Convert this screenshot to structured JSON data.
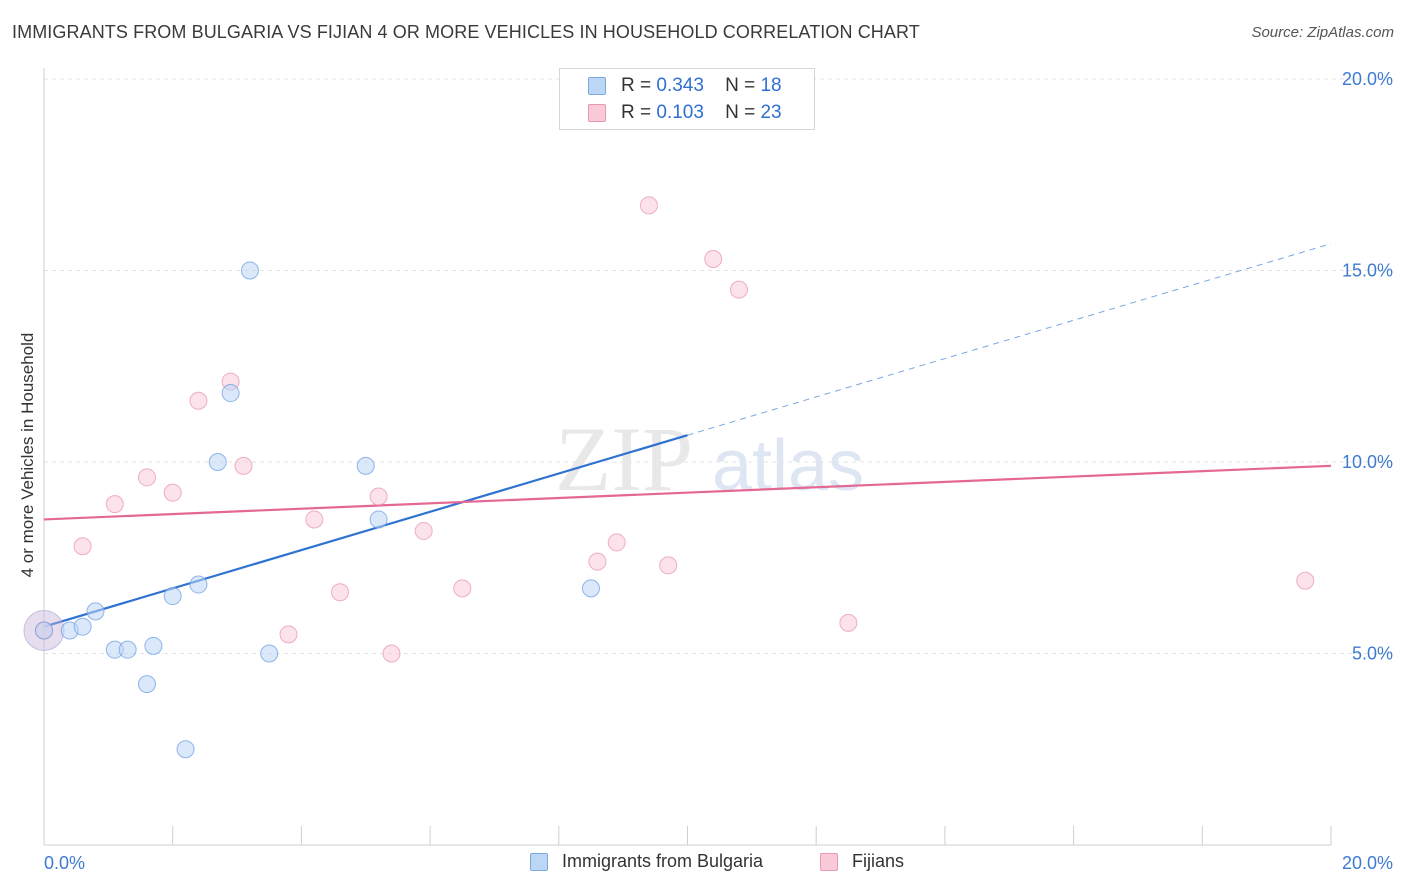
{
  "title": "IMMIGRANTS FROM BULGARIA VS FIJIAN 4 OR MORE VEHICLES IN HOUSEHOLD CORRELATION CHART",
  "source": "Source: ZipAtlas.com",
  "watermark": {
    "zip": "ZIP",
    "atlas": "atlas"
  },
  "legend_top": [
    {
      "r_label": "R =",
      "r_value": "0.343",
      "n_label": "N =",
      "n_value": "18",
      "color": "#bcd6f6"
    },
    {
      "r_label": "R =",
      "r_value": "0.103",
      "n_label": "N =",
      "n_value": "23",
      "color": "#f9cbd9"
    }
  ],
  "chart_data": {
    "type": "scatter",
    "title": "IMMIGRANTS FROM BULGARIA VS FIJIAN 4 OR MORE VEHICLES IN HOUSEHOLD CORRELATION CHART",
    "xlabel": "",
    "ylabel": "4 or more Vehicles in Household",
    "xlim": [
      0,
      20
    ],
    "ylim": [
      0,
      20
    ],
    "x_tick_labels": [
      "0.0%",
      "20.0%"
    ],
    "y_tick_labels": [
      "5.0%",
      "10.0%",
      "15.0%",
      "20.0%"
    ],
    "y_ticks": [
      5,
      10,
      15,
      20
    ],
    "grid": true,
    "legend_position": "bottom",
    "series": [
      {
        "name": "Immigrants from Bulgaria",
        "color": "#4a86d8",
        "fill": "#bcd6f6",
        "points": [
          [
            0.0,
            5.6
          ],
          [
            0.4,
            5.6
          ],
          [
            0.6,
            5.7
          ],
          [
            0.8,
            6.1
          ],
          [
            1.1,
            5.1
          ],
          [
            1.3,
            5.1
          ],
          [
            1.6,
            4.2
          ],
          [
            1.7,
            5.2
          ],
          [
            2.0,
            6.5
          ],
          [
            2.2,
            2.5
          ],
          [
            2.4,
            6.8
          ],
          [
            2.7,
            10.0
          ],
          [
            2.9,
            11.8
          ],
          [
            3.2,
            15.0
          ],
          [
            3.5,
            5.0
          ],
          [
            5.0,
            9.9
          ],
          [
            5.2,
            8.5
          ],
          [
            8.5,
            6.7
          ]
        ],
        "trend": {
          "x": [
            0.0,
            20.0
          ],
          "y": [
            5.7,
            15.7
          ],
          "solid_until_x": 10.0
        }
      },
      {
        "name": "Fijians",
        "color": "#e06a93",
        "fill": "#f9cbd9",
        "points": [
          [
            0.0,
            5.6
          ],
          [
            0.6,
            7.8
          ],
          [
            1.1,
            8.9
          ],
          [
            1.6,
            9.6
          ],
          [
            2.0,
            9.2
          ],
          [
            2.4,
            11.6
          ],
          [
            2.9,
            12.1
          ],
          [
            3.1,
            9.9
          ],
          [
            3.8,
            5.5
          ],
          [
            4.2,
            8.5
          ],
          [
            4.6,
            6.6
          ],
          [
            5.2,
            9.1
          ],
          [
            5.4,
            5.0
          ],
          [
            5.9,
            8.2
          ],
          [
            6.5,
            6.7
          ],
          [
            8.6,
            7.4
          ],
          [
            8.9,
            7.9
          ],
          [
            9.4,
            16.7
          ],
          [
            9.7,
            7.3
          ],
          [
            10.4,
            15.3
          ],
          [
            10.8,
            14.5
          ],
          [
            12.5,
            5.8
          ],
          [
            19.6,
            6.9
          ]
        ],
        "trend": {
          "x": [
            0.0,
            20.0
          ],
          "y": [
            8.5,
            9.9
          ]
        }
      }
    ]
  }
}
